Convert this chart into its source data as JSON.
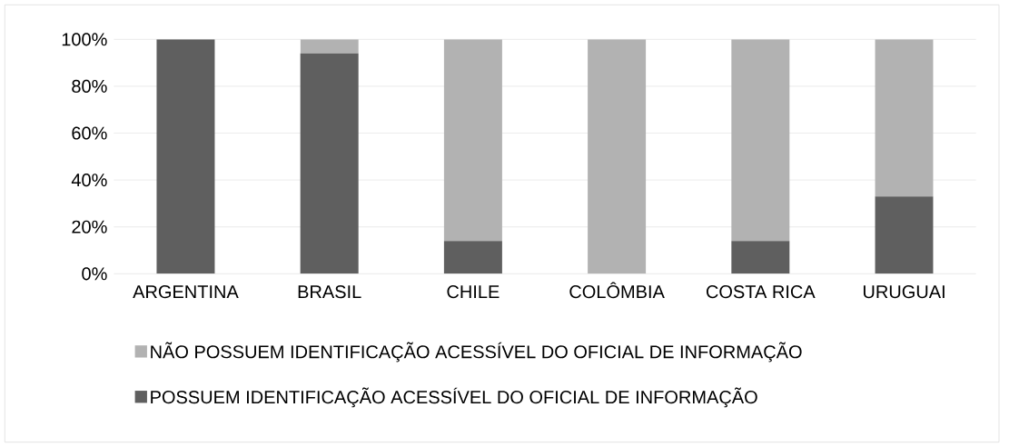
{
  "chart_data": {
    "type": "bar",
    "stacked": true,
    "categories": [
      "ARGENTINA",
      "BRASIL",
      "CHILE",
      "COLÔMBIA",
      "COSTA RICA",
      "URUGUAI"
    ],
    "series": [
      {
        "name": "POSSUEM IDENTIFICAÇÃO ACESSÍVEL DO OFICIAL DE INFORMAÇÃO",
        "color": "#5f5f5f",
        "values": [
          100,
          94,
          14,
          0,
          14,
          33
        ]
      },
      {
        "name": "NÃO POSSUEM IDENTIFICAÇÃO ACESSÍVEL DO OFICIAL DE INFORMAÇÃO",
        "color": "#b2b2b2",
        "values": [
          0,
          6,
          86,
          100,
          86,
          67
        ]
      }
    ],
    "ylim": [
      0,
      100
    ],
    "yticks": [
      {
        "value": 0,
        "label": "0%"
      },
      {
        "value": 20,
        "label": "20%"
      },
      {
        "value": 40,
        "label": "40%"
      },
      {
        "value": 60,
        "label": "60%"
      },
      {
        "value": 80,
        "label": "80%"
      },
      {
        "value": 100,
        "label": "100%"
      }
    ],
    "grid": "y",
    "legend": "bottom"
  }
}
